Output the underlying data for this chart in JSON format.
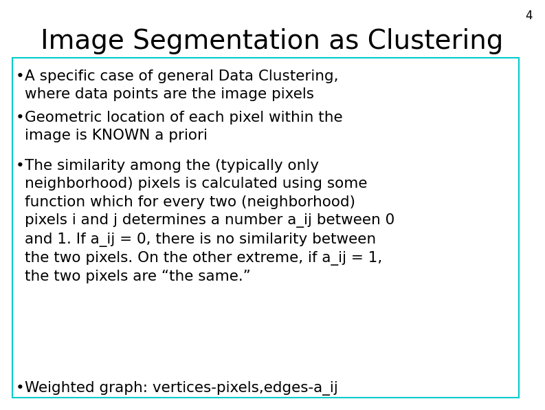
{
  "title": "Image Segmentation as Clustering",
  "slide_number": "4",
  "background_color": "#ffffff",
  "title_color": "#000000",
  "title_fontsize": 28,
  "bullet_fontsize": 15.5,
  "box_border_color": "#00cccc",
  "bullets": [
    "A specific case of general Data Clustering,\nwhere data points are the image pixels",
    "Geometric location of each pixel within the\nimage is KNOWN a priori",
    "The similarity among the (typically only\nneighborhood) pixels is calculated using some\nfunction which for every two (neighborhood)\npixels i and j determines a number a_ij between 0\nand 1. If a_ij = 0, there is no similarity between\nthe two pixels. On the other extreme, if a_ij = 1,\nthe two pixels are “the same.”",
    "Weighted graph: vertices-pixels,edges-a_ij"
  ]
}
